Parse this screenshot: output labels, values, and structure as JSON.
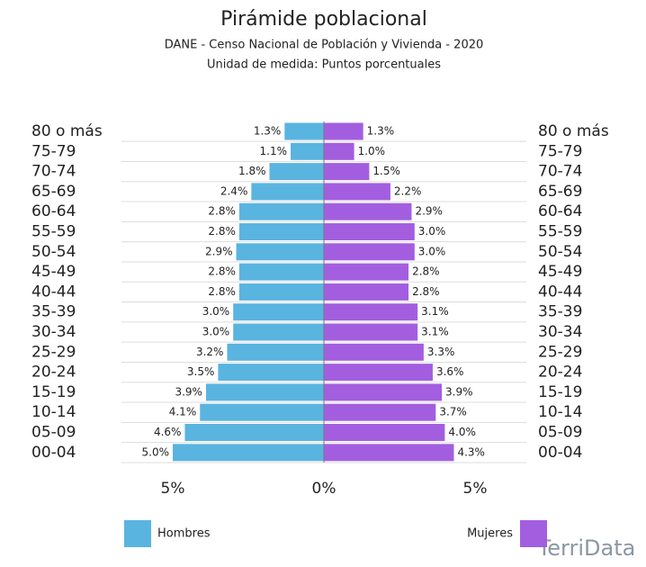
{
  "chart_data": {
    "type": "pyramid",
    "title": "Pirámide poblacional",
    "subtitle": [
      "DANE - Censo Nacional de Población y Vivienda - 2020",
      "Unidad de medida: Puntos porcentuales"
    ],
    "categories": [
      "80 o más",
      "75-79",
      "70-74",
      "65-69",
      "60-64",
      "55-59",
      "50-54",
      "45-49",
      "40-44",
      "35-39",
      "30-34",
      "25-29",
      "20-24",
      "15-19",
      "10-14",
      "05-09",
      "00-04"
    ],
    "series": [
      {
        "name": "Hombres",
        "color": "#5ab4e0",
        "values": [
          1.3,
          1.1,
          1.8,
          2.4,
          2.8,
          2.8,
          2.9,
          2.8,
          2.8,
          3.0,
          3.0,
          3.2,
          3.5,
          3.9,
          4.1,
          4.6,
          5.0
        ],
        "value_labels": [
          "1.3%",
          "1.1%",
          "1.8%",
          "2.4%",
          "2.8%",
          "2.8%",
          "2.9%",
          "2.8%",
          "2.8%",
          "3.0%",
          "3.0%",
          "3.2%",
          "3.5%",
          "3.9%",
          "4.1%",
          "4.6%",
          "5.0%"
        ]
      },
      {
        "name": "Mujeres",
        "color": "#a35ee0",
        "values": [
          1.3,
          1.0,
          1.5,
          2.2,
          2.9,
          3.0,
          3.0,
          2.8,
          2.8,
          3.1,
          3.1,
          3.3,
          3.6,
          3.9,
          3.7,
          4.0,
          4.3
        ],
        "value_labels": [
          "1.3%",
          "1.0%",
          "1.5%",
          "2.2%",
          "2.9%",
          "3.0%",
          "3.0%",
          "2.8%",
          "2.8%",
          "3.1%",
          "3.1%",
          "3.3%",
          "3.6%",
          "3.9%",
          "3.7%",
          "4.0%",
          "4.3%"
        ]
      }
    ],
    "xlim": [
      -5,
      5
    ],
    "xticks": [
      {
        "value": -5,
        "label": "5%"
      },
      {
        "value": 0,
        "label": "0%"
      },
      {
        "value": 5,
        "label": "5%"
      }
    ],
    "logo": "TerriData"
  }
}
